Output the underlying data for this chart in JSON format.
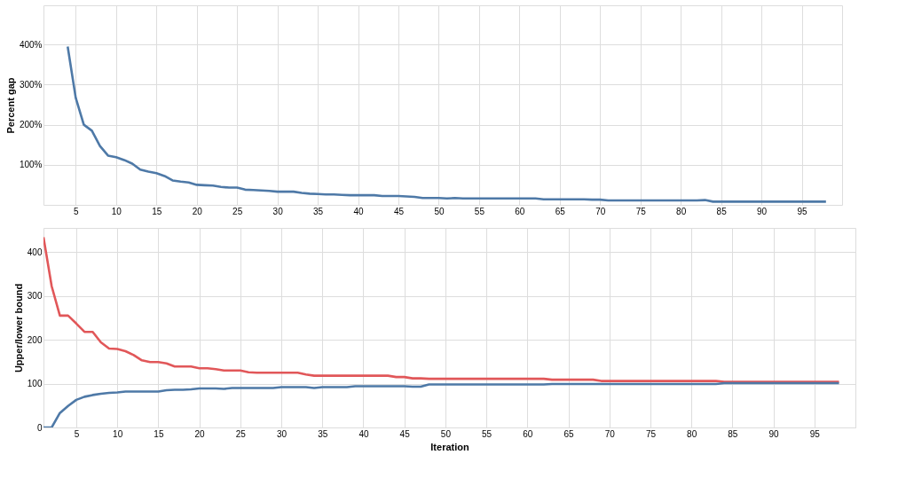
{
  "chart_data": [
    {
      "type": "line",
      "ylabel": "Percent gap",
      "grid": true,
      "line_style": "solid",
      "xlim": [
        1,
        100
      ],
      "xticks": [
        5,
        10,
        15,
        20,
        25,
        30,
        35,
        40,
        45,
        50,
        55,
        60,
        65,
        70,
        75,
        80,
        85,
        90,
        95
      ],
      "ylim": [
        0,
        498
      ],
      "yticks": [
        {
          "value": 100,
          "label": "100%"
        },
        {
          "value": 200,
          "label": "200%"
        },
        {
          "value": 300,
          "label": "300%"
        },
        {
          "value": 400,
          "label": "400%"
        }
      ],
      "x": [
        4,
        5,
        6,
        7,
        8,
        9,
        10,
        11,
        12,
        13,
        14,
        15,
        16,
        17,
        18,
        19,
        20,
        21,
        22,
        23,
        24,
        25,
        26,
        27,
        28,
        29,
        30,
        31,
        32,
        33,
        34,
        35,
        36,
        37,
        38,
        39,
        40,
        41,
        42,
        43,
        44,
        45,
        46,
        47,
        48,
        49,
        50,
        51,
        52,
        53,
        54,
        55,
        56,
        57,
        58,
        59,
        60,
        61,
        62,
        63,
        64,
        65,
        66,
        67,
        68,
        69,
        70,
        71,
        72,
        73,
        74,
        75,
        76,
        77,
        78,
        79,
        80,
        81,
        82,
        83,
        84,
        85,
        86,
        87,
        88,
        89,
        90,
        91,
        92,
        93,
        94,
        95,
        96,
        97,
        98
      ],
      "series": [
        {
          "color": "#4e79a7",
          "values": [
            395,
            267,
            200,
            185,
            147,
            123,
            119,
            112,
            103,
            88,
            83,
            79,
            72,
            61,
            58,
            56,
            50,
            49,
            48,
            45,
            43,
            43,
            38,
            37,
            36,
            35,
            33,
            33,
            33,
            30,
            28,
            27,
            26,
            26,
            25,
            24,
            24,
            24,
            24,
            22,
            22,
            22,
            21,
            20,
            17,
            17,
            17,
            16,
            17,
            16,
            16,
            16,
            16,
            16,
            16,
            16,
            16,
            16,
            16,
            14,
            14,
            14,
            14,
            14,
            14,
            13,
            13,
            11,
            11,
            11,
            11,
            11,
            11,
            11,
            11,
            11,
            11,
            11,
            11,
            12,
            8,
            8,
            8,
            8,
            8,
            8,
            8,
            8,
            8,
            8,
            8,
            8,
            8,
            8,
            8
          ]
        }
      ]
    },
    {
      "type": "line",
      "xlabel": "Iteration",
      "ylabel": "Upper/lower bound",
      "grid": true,
      "line_style": "solid",
      "xlim": [
        1,
        100
      ],
      "xticks": [
        5,
        10,
        15,
        20,
        25,
        30,
        35,
        40,
        45,
        50,
        55,
        60,
        65,
        70,
        75,
        80,
        85,
        90,
        95
      ],
      "ylim": [
        0,
        455
      ],
      "yticks": [
        0,
        100,
        200,
        300,
        400
      ],
      "x": [
        1,
        2,
        3,
        4,
        5,
        6,
        7,
        8,
        9,
        10,
        11,
        12,
        13,
        14,
        15,
        16,
        17,
        18,
        19,
        20,
        21,
        22,
        23,
        24,
        25,
        26,
        27,
        28,
        29,
        30,
        31,
        32,
        33,
        34,
        35,
        36,
        37,
        38,
        39,
        40,
        41,
        42,
        43,
        44,
        45,
        46,
        47,
        48,
        49,
        50,
        51,
        52,
        53,
        54,
        55,
        56,
        57,
        58,
        59,
        60,
        61,
        62,
        63,
        64,
        65,
        66,
        67,
        68,
        69,
        70,
        71,
        72,
        73,
        74,
        75,
        76,
        77,
        78,
        79,
        80,
        81,
        82,
        83,
        84,
        85,
        86,
        87,
        88,
        89,
        90,
        91,
        92,
        93,
        94,
        95,
        96,
        97,
        98
      ],
      "series": [
        {
          "color": "#e15759",
          "values": [
            434,
            322,
            255,
            255,
            237,
            218,
            218,
            194,
            180,
            179,
            174,
            165,
            153,
            149,
            149,
            146,
            139,
            139,
            139,
            135,
            135,
            133,
            130,
            130,
            130,
            126,
            125,
            125,
            125,
            125,
            125,
            125,
            121,
            118,
            118,
            118,
            118,
            118,
            118,
            118,
            118,
            118,
            118,
            115,
            115,
            112,
            112,
            111,
            111,
            111,
            111,
            111,
            111,
            111,
            111,
            111,
            111,
            111,
            111,
            111,
            111,
            111,
            109,
            109,
            109,
            109,
            109,
            109,
            106,
            106,
            106,
            106,
            106,
            106,
            106,
            106,
            106,
            106,
            106,
            106,
            106,
            106,
            106,
            104,
            104,
            104,
            104,
            104,
            104,
            104,
            104,
            104,
            104,
            104,
            104,
            104,
            104,
            104
          ]
        },
        {
          "color": "#4e79a7",
          "values": [
            0,
            0,
            33,
            49,
            63,
            70,
            74,
            77,
            79,
            80,
            82,
            82,
            82,
            82,
            82,
            85,
            86,
            86,
            87,
            89,
            89,
            89,
            88,
            90,
            90,
            90,
            90,
            90,
            90,
            92,
            92,
            92,
            92,
            90,
            92,
            92,
            92,
            92,
            94,
            94,
            94,
            94,
            94,
            94,
            94,
            93,
            93,
            98,
            98,
            98,
            98,
            98,
            98,
            98,
            98,
            98,
            98,
            98,
            98,
            98,
            98,
            98,
            99,
            99,
            99,
            99,
            99,
            99,
            99,
            99,
            99,
            99,
            99,
            99,
            99,
            99,
            99,
            99,
            99,
            99,
            99,
            99,
            99,
            101,
            101,
            101,
            101,
            101,
            101,
            101,
            101,
            101,
            101,
            101,
            101,
            101,
            101,
            101
          ]
        }
      ]
    }
  ]
}
